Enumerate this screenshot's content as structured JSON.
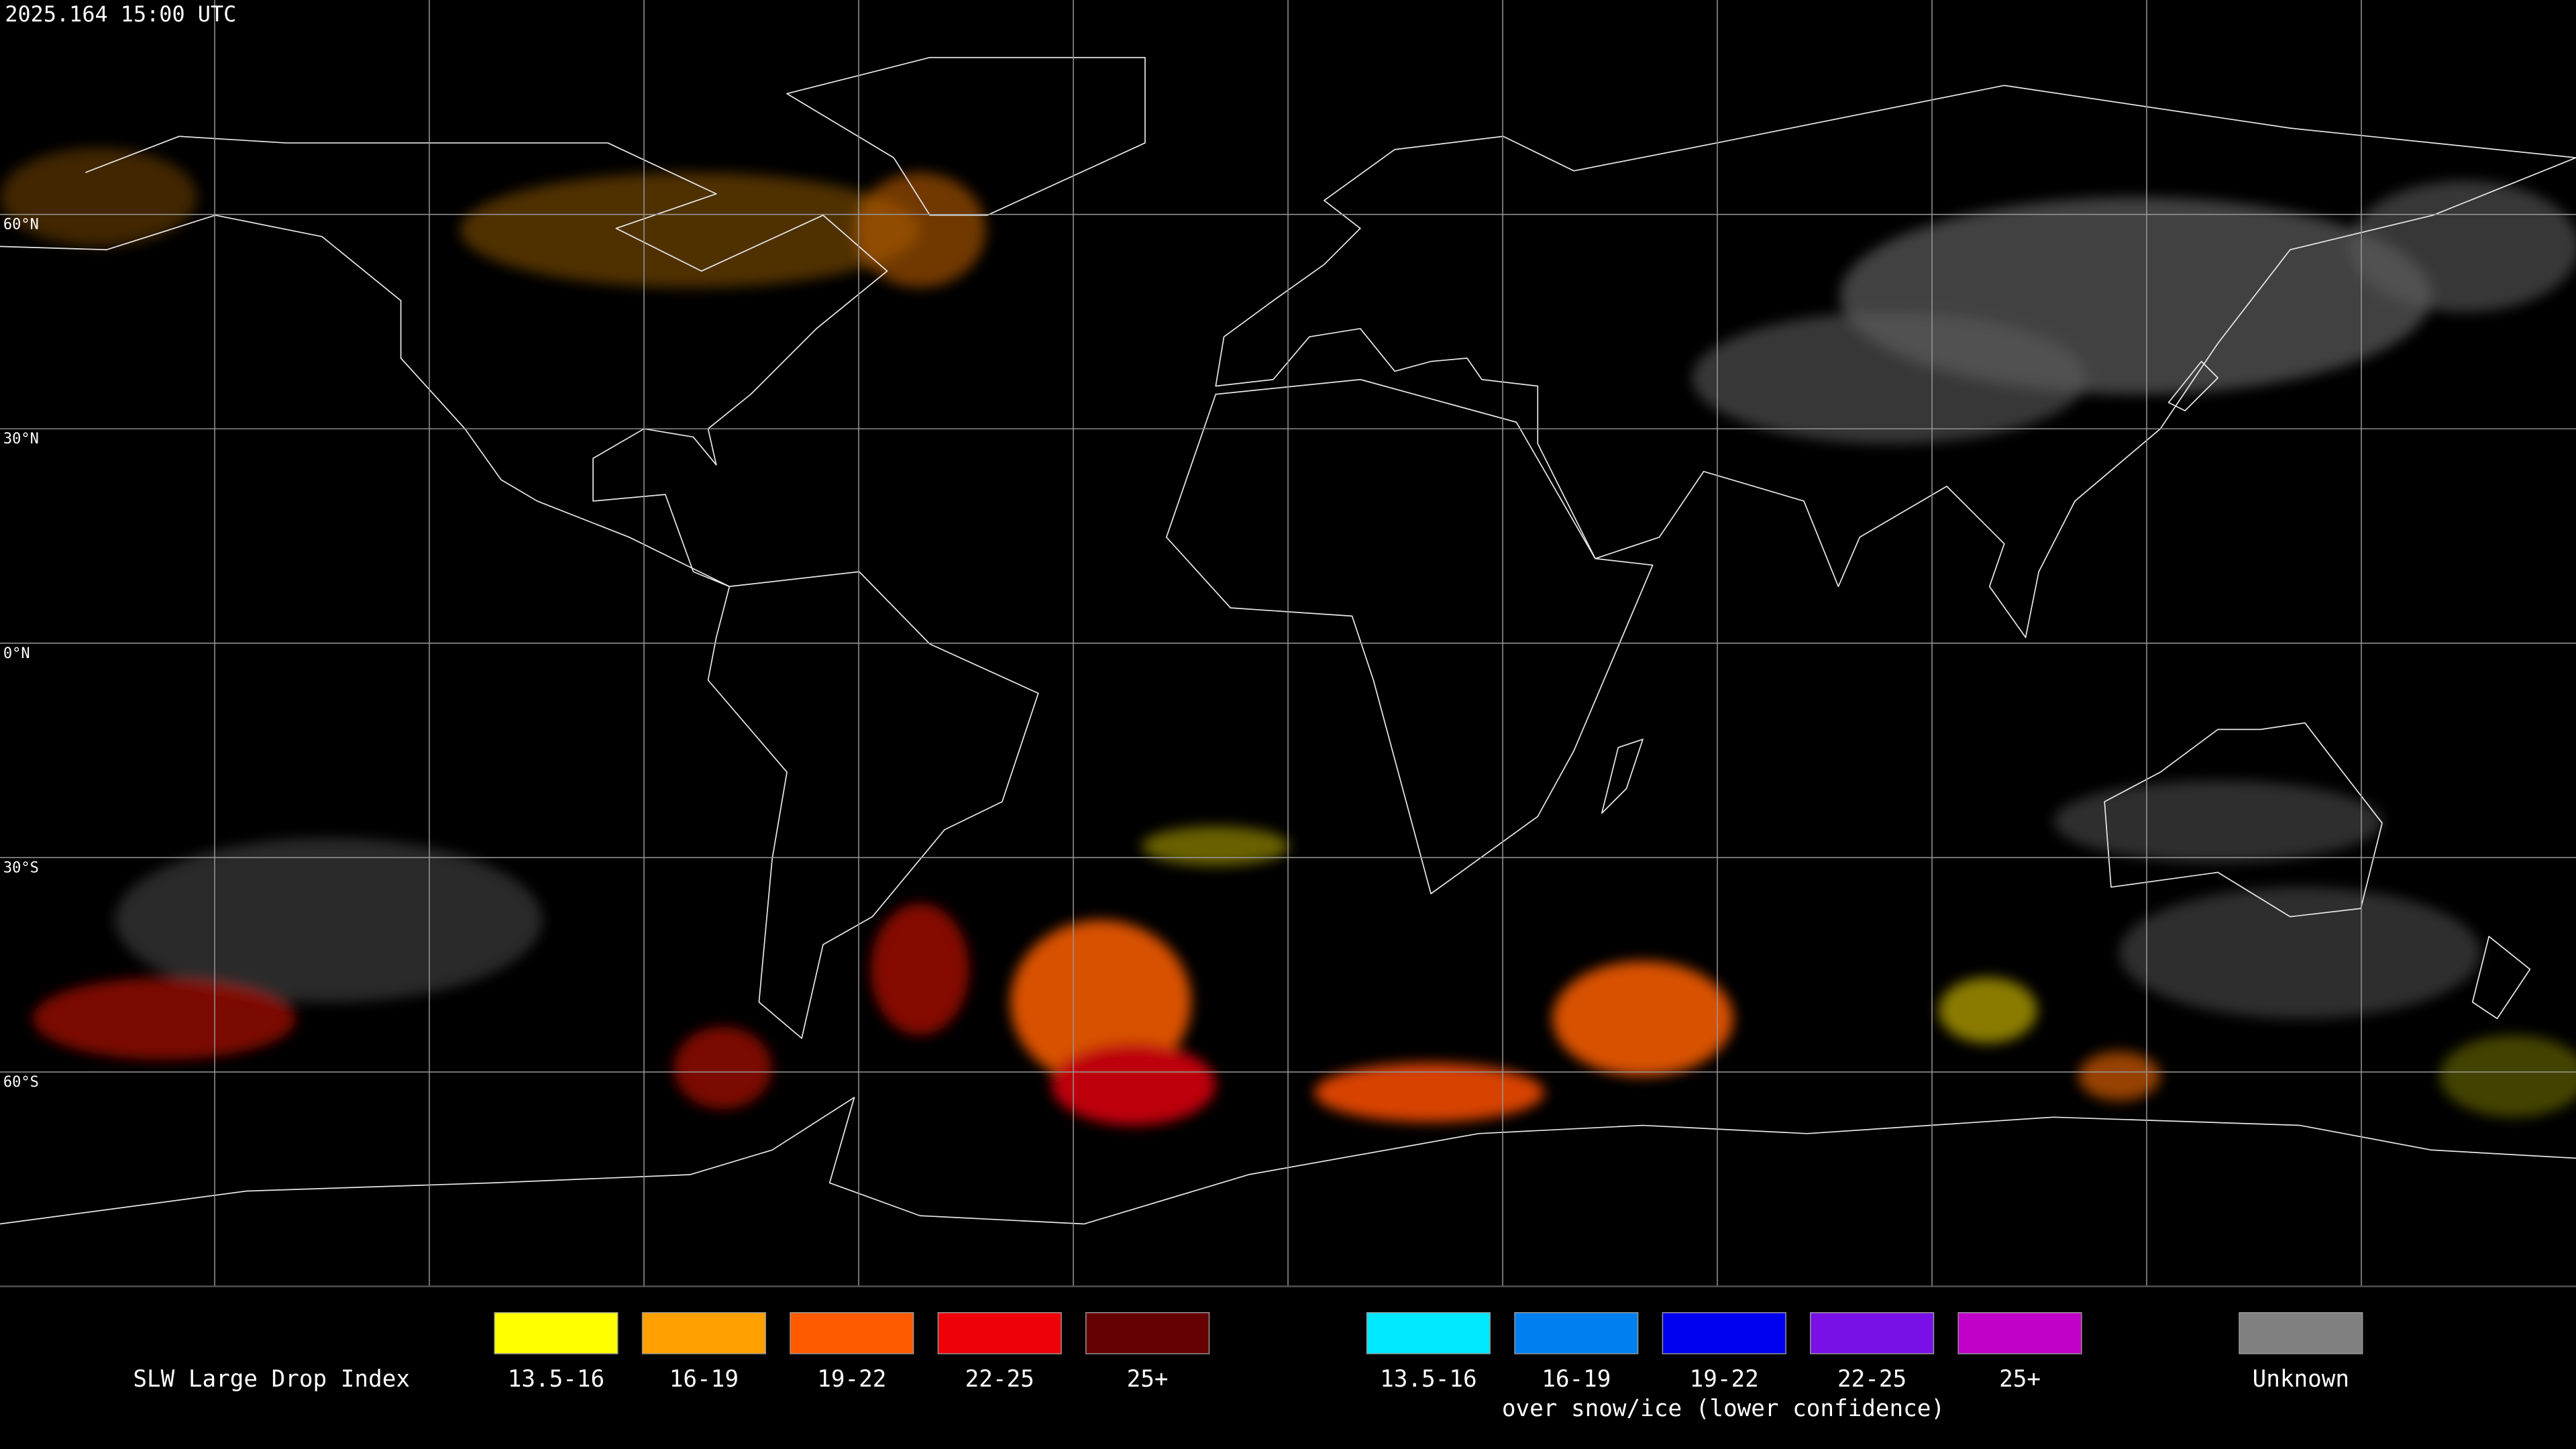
{
  "header": {
    "timestamp": "2025.164 15:00 UTC"
  },
  "map": {
    "latitude_labels": [
      "60°N",
      "30°N",
      "0°N",
      "30°S",
      "60°S"
    ]
  },
  "legend": {
    "title": "SLW Large Drop Index",
    "items": [
      {
        "label": "13.5-16",
        "color": "#ffff00"
      },
      {
        "label": "16-19",
        "color": "#ffa000"
      },
      {
        "label": "19-22",
        "color": "#ff5a00"
      },
      {
        "label": "22-25",
        "color": "#f00008"
      },
      {
        "label": "25+",
        "color": "#640000"
      }
    ],
    "snow_ice_items": [
      {
        "label": "13.5-16",
        "color": "#00e8ff"
      },
      {
        "label": "16-19",
        "color": "#0080f0"
      },
      {
        "label": "19-22",
        "color": "#0000f0"
      },
      {
        "label": "22-25",
        "color": "#7a10e8"
      },
      {
        "label": "25+",
        "color": "#c000c8"
      }
    ],
    "snow_ice_note": "over snow/ice (lower confidence)",
    "unknown": {
      "label": "Unknown",
      "color": "#808080"
    }
  }
}
